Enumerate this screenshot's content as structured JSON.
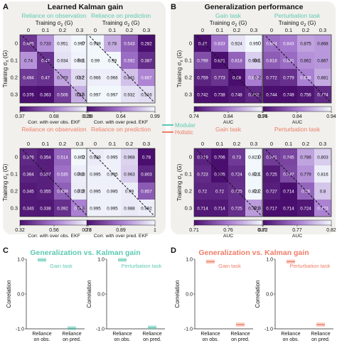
{
  "panel_letters": {
    "a": "A",
    "b": "B",
    "c": "C",
    "d": "D"
  },
  "panel_titles": {
    "a": "Learned Kalman gain",
    "b": "Generalization performance",
    "c": "Generalization vs. Kalman gain",
    "d": "Generalization vs. Kalman gain"
  },
  "legend": {
    "modular": "Modular",
    "holistic": "Holistic"
  },
  "colors": {
    "modular": "#5cc9b2",
    "holistic": "#ee7d68",
    "panel_bg": "#f1f0ec",
    "heat_low": "#4a0f6e",
    "heat_mid": "#a77bd0",
    "heat_high": "#f2f7fc"
  },
  "axis_text": {
    "training_top": "Training σ",
    "training_top_sub": "z",
    "training_top_suffix": " (G)",
    "training_left": "Training σ",
    "training_left_sub": "x",
    "training_left_suffix": " (G)",
    "correlation": "Correlation"
  },
  "tick_labels": [
    "0",
    "0.1",
    "0.2",
    "0.3"
  ],
  "chart_data": [
    {
      "type": "heatmap",
      "title": "Reliance on observation",
      "title_color": "modular",
      "cells": [
        [
          0.485,
          0.733,
          0.951,
          0.997
        ],
        [
          0.74,
          0.47,
          0.934,
          0.981
        ],
        [
          0.494,
          0.47,
          0.778,
          0.92
        ],
        [
          0.376,
          0.363,
          0.506,
          0.81
        ]
      ],
      "cbar_ticks": [
        "0.37",
        "0.68",
        "0.99"
      ],
      "cbar_range": [
        0.37,
        0.99
      ],
      "cbar_label": "Corr. with over obs. EKF"
    },
    {
      "type": "heatmap",
      "title": "Reliance on prediction",
      "title_color": "modular",
      "cells": [
        [
          0.999,
          0.78,
          0.543,
          0.282
        ],
        [
          0.99,
          0.99,
          0.592,
          0.387
        ],
        [
          0.966,
          0.966,
          0.841,
          0.667
        ],
        [
          0.997,
          0.997,
          0.932,
          0.916
        ]
      ],
      "cbar_ticks": [
        "0.29",
        "0.64",
        "0.99"
      ],
      "cbar_range": [
        0.29,
        0.99
      ],
      "cbar_label": "Corr. with over pred. EKF"
    },
    {
      "type": "heatmap",
      "title": "Reliance on observation",
      "title_color": "holistic",
      "cells": [
        [
          0.376,
          0.354,
          0.514,
          0.802
        ],
        [
          0.364,
          0.357,
          0.535,
          0.783
        ],
        [
          0.345,
          0.355,
          0.499,
          0.778
        ],
        [
          0.343,
          0.338,
          0.392,
          0.571
        ]
      ],
      "cbar_ticks": [
        "0.32",
        "0.56",
        "0.8"
      ],
      "cbar_range": [
        0.32,
        0.8
      ],
      "cbar_label": "Corr. with over obs. EKF"
    },
    {
      "type": "heatmap",
      "title": "Reliance on prediction",
      "title_color": "holistic",
      "cells": [
        [
          0.989,
          0.995,
          0.968,
          0.78
        ],
        [
          0.995,
          0.995,
          0.963,
          0.803
        ],
        [
          0.995,
          0.995,
          0.99,
          0.857
        ],
        [
          0.995,
          0.995,
          0.988,
          0.992
        ]
      ],
      "cbar_ticks": [
        "0.78",
        "0.89",
        "1"
      ],
      "cbar_range": [
        0.78,
        1.0
      ],
      "cbar_label": "Corr. with over pred. EKF"
    },
    {
      "type": "heatmap",
      "title": "Gain task",
      "title_color": "modular",
      "cells": [
        [
          0.32,
          0.833,
          0.924,
          0.95
        ],
        [
          0.799,
          0.621,
          0.818,
          0.908
        ],
        [
          0.759,
          0.773,
          0.68,
          0.842
        ],
        [
          0.742,
          0.738,
          0.748,
          0.762
        ]
      ],
      "cbar_ticks": [
        "0.74",
        "0.84",
        "0.94"
      ],
      "cbar_range": [
        0.74,
        0.94
      ],
      "cbar_label": "AUC"
    },
    {
      "type": "heatmap",
      "title": "Perturbation task",
      "title_color": "modular",
      "cells": [
        [
          0.834,
          0.843,
          0.875,
          0.868
        ],
        [
          0.818,
          0.831,
          0.862,
          0.867
        ],
        [
          0.772,
          0.779,
          0.848,
          0.881
        ],
        [
          0.744,
          0.749,
          0.756,
          0.774
        ]
      ],
      "cbar_ticks": [
        "0.75",
        "0.84",
        "0.94"
      ],
      "cbar_range": [
        0.75,
        0.94
      ],
      "cbar_label": "AUC"
    },
    {
      "type": "heatmap",
      "title": "Gain task",
      "title_color": "holistic",
      "cells": [
        [
          0.719,
          0.706,
          0.73,
          0.823
        ],
        [
          0.723,
          0.705,
          0.724,
          0.823
        ],
        [
          0.72,
          0.72,
          0.725,
          0.823
        ],
        [
          0.714,
          0.714,
          0.725,
          0.773
        ]
      ],
      "cbar_ticks": [
        "0.71",
        "0.76",
        "0.81"
      ],
      "cbar_range": [
        0.71,
        0.81
      ],
      "cbar_label": "AUC"
    },
    {
      "type": "heatmap",
      "title": "Perturbation task",
      "title_color": "holistic",
      "cells": [
        [
          0.741,
          0.745,
          0.786,
          0.803
        ],
        [
          0.725,
          0.747,
          0.779,
          0.816
        ],
        [
          0.727,
          0.714,
          0.76,
          0.8
        ],
        [
          0.717,
          0.714,
          0.724,
          0.773
        ]
      ],
      "cbar_ticks": [
        "0.72",
        "0.77",
        "0.82"
      ],
      "cbar_range": [
        0.72,
        0.82
      ],
      "cbar_label": "AUC"
    },
    {
      "type": "bar",
      "title": "Gain task",
      "title_color": "modular",
      "categories": [
        "Reliance on obs.",
        "Reliance on pred."
      ],
      "values": [
        0.98,
        -0.98
      ],
      "ylim": [
        -1.0,
        1.0
      ],
      "yticks": [
        "-1.0",
        "0.0",
        "1.0"
      ],
      "ylabel": "Correlation"
    },
    {
      "type": "bar",
      "title": "Perturbation task",
      "title_color": "modular",
      "categories": [
        "Reliance on obs.",
        "Reliance on pred."
      ],
      "values": [
        0.98,
        -0.96
      ],
      "ylim": [
        -1.0,
        1.0
      ],
      "yticks": [
        "-1.0",
        "0.0",
        "1.0"
      ],
      "ylabel": "Correlation"
    },
    {
      "type": "bar",
      "title": "Gain task",
      "title_color": "holistic",
      "categories": [
        "Reliance on obs.",
        "Reliance on pred."
      ],
      "values": [
        0.93,
        -0.88
      ],
      "ylim": [
        -1.0,
        1.0
      ],
      "yticks": [
        "-1.0",
        "0.0",
        "1.0"
      ],
      "ylabel": "Correlation"
    },
    {
      "type": "bar",
      "title": "Perturbation task",
      "title_color": "holistic",
      "categories": [
        "Reliance on obs.",
        "Reliance on pred."
      ],
      "values": [
        0.93,
        -0.88
      ],
      "ylim": [
        -1.0,
        1.0
      ],
      "yticks": [
        "-1.0",
        "0.0",
        "1.0"
      ],
      "ylabel": "Correlation"
    }
  ]
}
